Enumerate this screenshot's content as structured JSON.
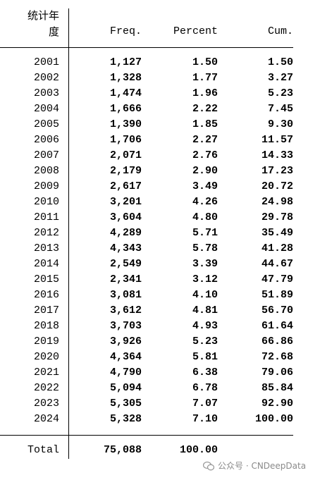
{
  "table": {
    "header": [
      "统计年度",
      "Freq.",
      "Percent",
      "Cum."
    ],
    "rows": [
      [
        "2001",
        "1,127",
        "1.50",
        "1.50"
      ],
      [
        "2002",
        "1,328",
        "1.77",
        "3.27"
      ],
      [
        "2003",
        "1,474",
        "1.96",
        "5.23"
      ],
      [
        "2004",
        "1,666",
        "2.22",
        "7.45"
      ],
      [
        "2005",
        "1,390",
        "1.85",
        "9.30"
      ],
      [
        "2006",
        "1,706",
        "2.27",
        "11.57"
      ],
      [
        "2007",
        "2,071",
        "2.76",
        "14.33"
      ],
      [
        "2008",
        "2,179",
        "2.90",
        "17.23"
      ],
      [
        "2009",
        "2,617",
        "3.49",
        "20.72"
      ],
      [
        "2010",
        "3,201",
        "4.26",
        "24.98"
      ],
      [
        "2011",
        "3,604",
        "4.80",
        "29.78"
      ],
      [
        "2012",
        "4,289",
        "5.71",
        "35.49"
      ],
      [
        "2013",
        "4,343",
        "5.78",
        "41.28"
      ],
      [
        "2014",
        "2,549",
        "3.39",
        "44.67"
      ],
      [
        "2015",
        "2,341",
        "3.12",
        "47.79"
      ],
      [
        "2016",
        "3,081",
        "4.10",
        "51.89"
      ],
      [
        "2017",
        "3,612",
        "4.81",
        "56.70"
      ],
      [
        "2018",
        "3,703",
        "4.93",
        "61.64"
      ],
      [
        "2019",
        "3,926",
        "5.23",
        "66.86"
      ],
      [
        "2020",
        "4,364",
        "5.81",
        "72.68"
      ],
      [
        "2021",
        "4,790",
        "6.38",
        "79.06"
      ],
      [
        "2022",
        "5,094",
        "6.78",
        "85.84"
      ],
      [
        "2023",
        "5,305",
        "7.07",
        "92.90"
      ],
      [
        "2024",
        "5,328",
        "7.10",
        "100.00"
      ]
    ],
    "total": [
      "Total",
      "75,088",
      "100.00"
    ]
  },
  "watermark": "公众号 · CNDeepData"
}
